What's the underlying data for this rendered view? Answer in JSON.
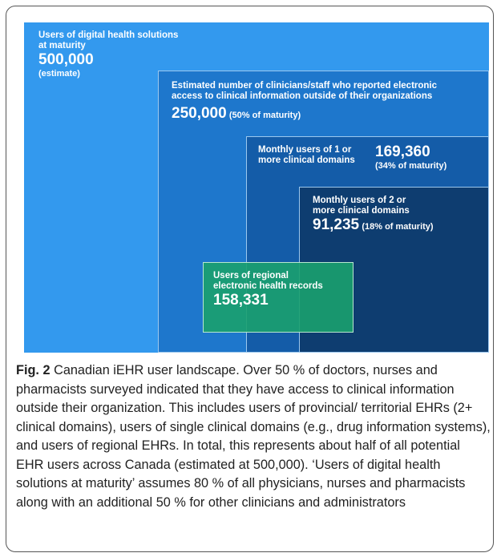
{
  "figure": {
    "boxes": [
      {
        "lines": [
          "Users of digital health solutions",
          "at maturity"
        ],
        "number": "500,000",
        "note": "(estimate)"
      },
      {
        "lines": [
          "Estimated number of clinicians/staff who reported electronic",
          "access to clinical information outside of their organizations"
        ],
        "number": "250,000",
        "note": "(50% of maturity)"
      },
      {
        "lines": [
          "Monthly users of 1 or",
          "more clinical domains"
        ],
        "number": "169,360",
        "note": "(34% of maturity)"
      },
      {
        "lines": [
          "Monthly users of 2 or",
          "more clinical domains"
        ],
        "number": "91,235",
        "note": "(18% of maturity)"
      },
      {
        "lines": [
          "Users of regional",
          "electronic health records"
        ],
        "number": "158,331"
      }
    ],
    "caption": {
      "label": "Fig. 2",
      "text": "Canadian iEHR user landscape. Over 50 % of doctors, nurses and pharmacists surveyed indicated that they have access to clinical information outside their organization. This includes users of provincial/ territorial EHRs (2+ clinical domains), users of single clinical domains (e.g., drug information systems), and users of regional EHRs. In total, this represents about half of all potential EHR users across Canada (estimated at 500,000). ‘Users of digital health solutions at maturity’ assumes 80 % of all physicians, nurses and pharmacists along with an additional 50 % for other clinicians and administrators"
    }
  }
}
